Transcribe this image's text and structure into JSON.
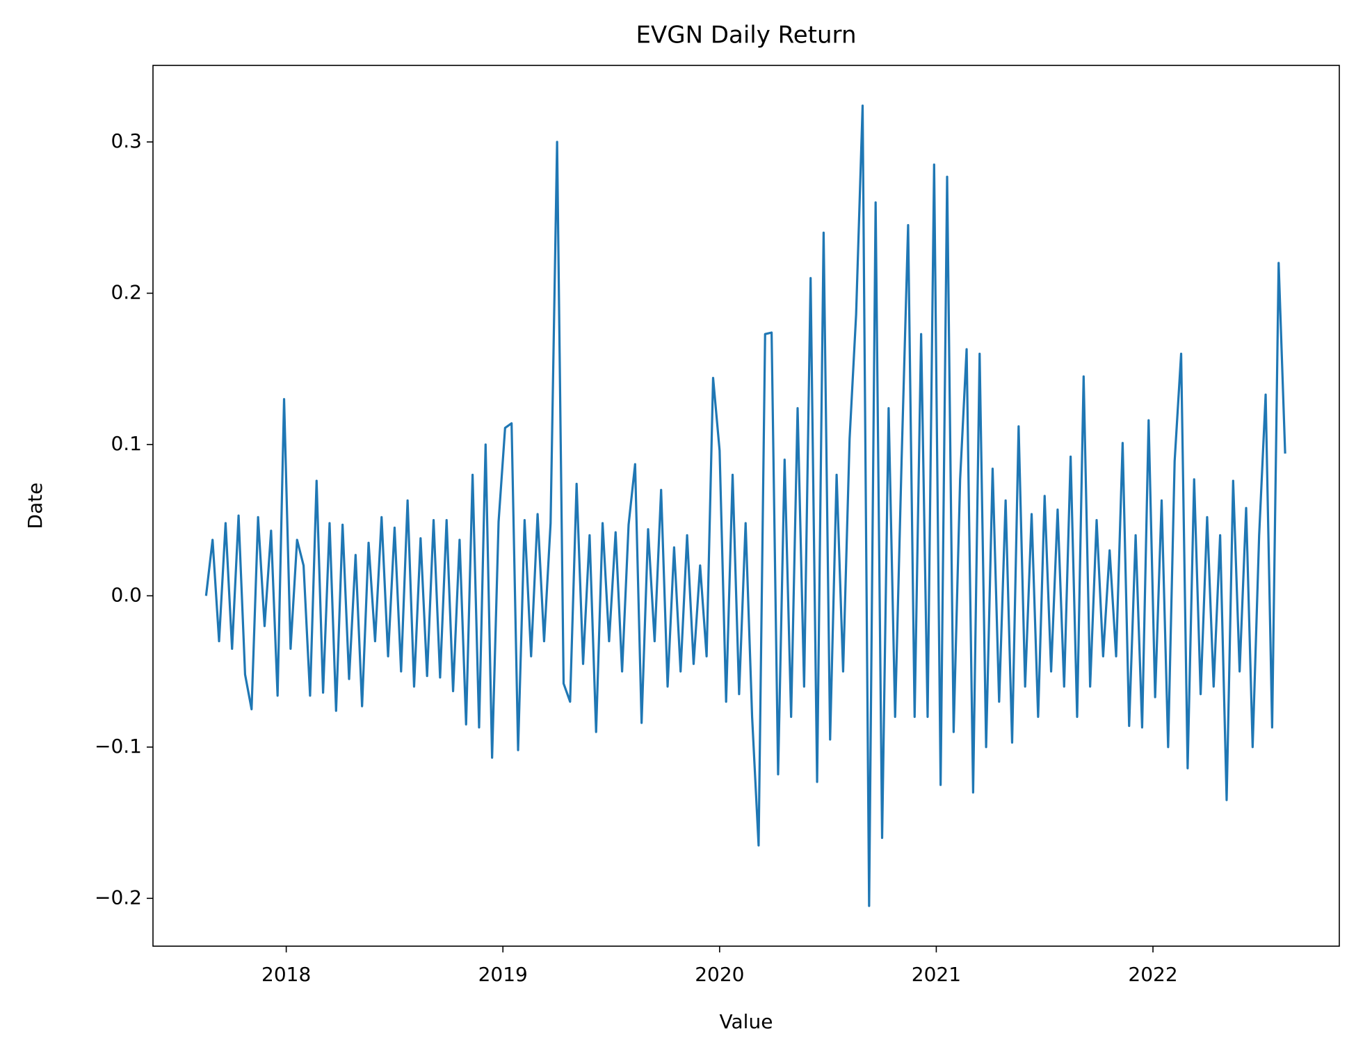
{
  "chart_data": {
    "type": "line",
    "title": "EVGN Daily Return",
    "x_label": "Value",
    "y_label": "Date",
    "color": "#1f77b4",
    "x": [
      2017.63,
      2017.66,
      2017.69,
      2017.72,
      2017.75,
      2017.78,
      2017.81,
      2017.84,
      2017.87,
      2017.9,
      2017.93,
      2017.96,
      2017.99,
      2018.02,
      2018.05,
      2018.08,
      2018.11,
      2018.14,
      2018.17,
      2018.2,
      2018.23,
      2018.26,
      2018.29,
      2018.32,
      2018.35,
      2018.38,
      2018.41,
      2018.44,
      2018.47,
      2018.5,
      2018.53,
      2018.56,
      2018.59,
      2018.62,
      2018.65,
      2018.68,
      2018.71,
      2018.74,
      2018.77,
      2018.8,
      2018.83,
      2018.86,
      2018.89,
      2018.92,
      2018.95,
      2018.98,
      2019.01,
      2019.04,
      2019.07,
      2019.1,
      2019.13,
      2019.16,
      2019.19,
      2019.22,
      2019.25,
      2019.28,
      2019.31,
      2019.34,
      2019.37,
      2019.4,
      2019.43,
      2019.46,
      2019.49,
      2019.52,
      2019.55,
      2019.58,
      2019.61,
      2019.64,
      2019.67,
      2019.7,
      2019.73,
      2019.76,
      2019.79,
      2019.82,
      2019.85,
      2019.88,
      2019.91,
      2019.94,
      2019.97,
      2020.0,
      2020.03,
      2020.06,
      2020.09,
      2020.12,
      2020.15,
      2020.18,
      2020.21,
      2020.24,
      2020.27,
      2020.3,
      2020.33,
      2020.36,
      2020.39,
      2020.42,
      2020.45,
      2020.48,
      2020.51,
      2020.54,
      2020.57,
      2020.6,
      2020.63,
      2020.66,
      2020.69,
      2020.72,
      2020.75,
      2020.78,
      2020.81,
      2020.84,
      2020.87,
      2020.9,
      2020.93,
      2020.96,
      2020.99,
      2021.02,
      2021.05,
      2021.08,
      2021.11,
      2021.14,
      2021.17,
      2021.2,
      2021.23,
      2021.26,
      2021.29,
      2021.32,
      2021.35,
      2021.38,
      2021.41,
      2021.44,
      2021.47,
      2021.5,
      2021.53,
      2021.56,
      2021.59,
      2021.62,
      2021.65,
      2021.68,
      2021.71,
      2021.74,
      2021.77,
      2021.8,
      2021.83,
      2021.86,
      2021.89,
      2021.92,
      2021.95,
      2021.98,
      2022.01,
      2022.04,
      2022.07,
      2022.1,
      2022.13,
      2022.16,
      2022.19,
      2022.22,
      2022.25,
      2022.28,
      2022.31,
      2022.34,
      2022.37,
      2022.4,
      2022.43,
      2022.46,
      2022.49,
      2022.52,
      2022.55,
      2022.58,
      2022.61
    ],
    "values": [
      0.0,
      0.037,
      -0.03,
      0.048,
      -0.035,
      0.053,
      -0.052,
      -0.075,
      0.052,
      -0.02,
      0.043,
      -0.066,
      0.13,
      -0.035,
      0.037,
      0.02,
      -0.066,
      0.076,
      -0.064,
      0.048,
      -0.076,
      0.047,
      -0.055,
      0.027,
      -0.073,
      0.035,
      -0.03,
      0.052,
      -0.04,
      0.045,
      -0.05,
      0.063,
      -0.06,
      0.038,
      -0.053,
      0.05,
      -0.054,
      0.05,
      -0.063,
      0.037,
      -0.085,
      0.08,
      -0.087,
      0.1,
      -0.107,
      0.049,
      0.111,
      0.114,
      -0.102,
      0.05,
      -0.04,
      0.054,
      -0.03,
      0.048,
      0.3,
      -0.058,
      -0.07,
      0.074,
      -0.045,
      0.04,
      -0.09,
      0.048,
      -0.03,
      0.042,
      -0.05,
      0.047,
      0.087,
      -0.084,
      0.044,
      -0.03,
      0.07,
      -0.06,
      0.032,
      -0.05,
      0.04,
      -0.045,
      0.02,
      -0.04,
      0.144,
      0.096,
      -0.07,
      0.08,
      -0.065,
      0.048,
      -0.08,
      -0.165,
      0.173,
      0.174,
      -0.118,
      0.09,
      -0.08,
      0.124,
      -0.06,
      0.21,
      -0.123,
      0.24,
      -0.095,
      0.08,
      -0.05,
      0.104,
      0.186,
      0.324,
      -0.205,
      0.26,
      -0.16,
      0.124,
      -0.08,
      0.09,
      0.245,
      -0.08,
      0.173,
      -0.08,
      0.285,
      -0.125,
      0.277,
      -0.09,
      0.077,
      0.163,
      -0.13,
      0.16,
      -0.1,
      0.084,
      -0.07,
      0.063,
      -0.097,
      0.112,
      -0.06,
      0.054,
      -0.08,
      0.066,
      -0.05,
      0.057,
      -0.06,
      0.092,
      -0.08,
      0.145,
      -0.06,
      0.05,
      -0.04,
      0.03,
      -0.04,
      0.101,
      -0.086,
      0.04,
      -0.087,
      0.116,
      -0.067,
      0.063,
      -0.1,
      0.089,
      0.16,
      -0.114,
      0.077,
      -0.065,
      0.052,
      -0.06,
      0.04,
      -0.135,
      0.076,
      -0.05,
      0.058,
      -0.1,
      0.04,
      0.133,
      -0.087,
      0.22,
      0.094
    ],
    "xlim": [
      2017.385,
      2022.86
    ],
    "xticks": [
      2018,
      2019,
      2020,
      2021,
      2022
    ],
    "ylim": [
      -0.2316,
      0.3506
    ],
    "yticks": [
      {
        "value": -0.2,
        "label": "−0.2"
      },
      {
        "value": -0.1,
        "label": "−0.1"
      },
      {
        "value": 0,
        "label": "0.0"
      },
      0.1,
      0.2,
      0.3
    ],
    "grid": false
  }
}
